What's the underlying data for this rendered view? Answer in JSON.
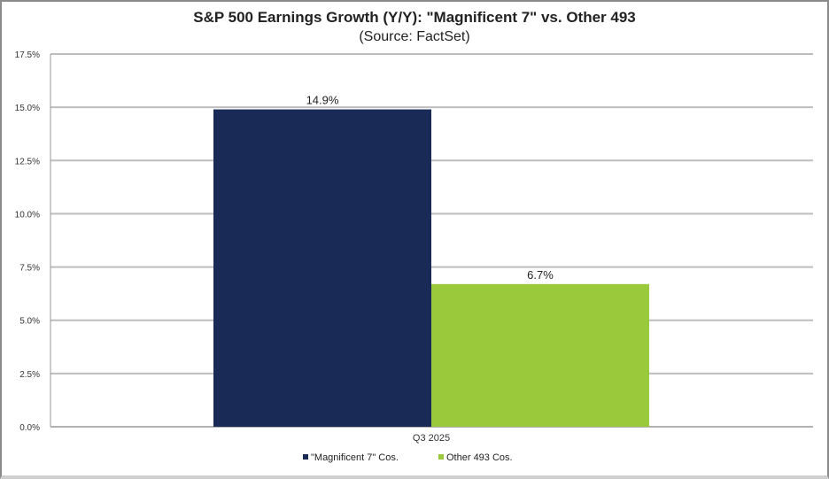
{
  "chart_data": {
    "type": "bar",
    "title": "S&P 500 Earnings Growth (Y/Y): \"Magnificent 7\" vs. Other 493",
    "subtitle": "(Source: FactSet)",
    "categories": [
      "Q3 2025"
    ],
    "series": [
      {
        "name": "\"Magnificent 7\" Cos.",
        "values": [
          14.9
        ],
        "label": "14.9%",
        "color": "#1a2a56"
      },
      {
        "name": "Other 493 Cos.",
        "values": [
          6.7
        ],
        "label": "6.7%",
        "color": "#9bc93c"
      }
    ],
    "xlabel": "",
    "ylabel": "",
    "ylim": [
      0,
      17.5
    ],
    "yticks": [
      "0.0%",
      "2.5%",
      "5.0%",
      "7.5%",
      "10.0%",
      "12.5%",
      "15.0%",
      "17.5%"
    ],
    "ytick_values": [
      0,
      2.5,
      5,
      7.5,
      10,
      12.5,
      15,
      17.5
    ],
    "grid": true,
    "legend": "bottom-center"
  }
}
